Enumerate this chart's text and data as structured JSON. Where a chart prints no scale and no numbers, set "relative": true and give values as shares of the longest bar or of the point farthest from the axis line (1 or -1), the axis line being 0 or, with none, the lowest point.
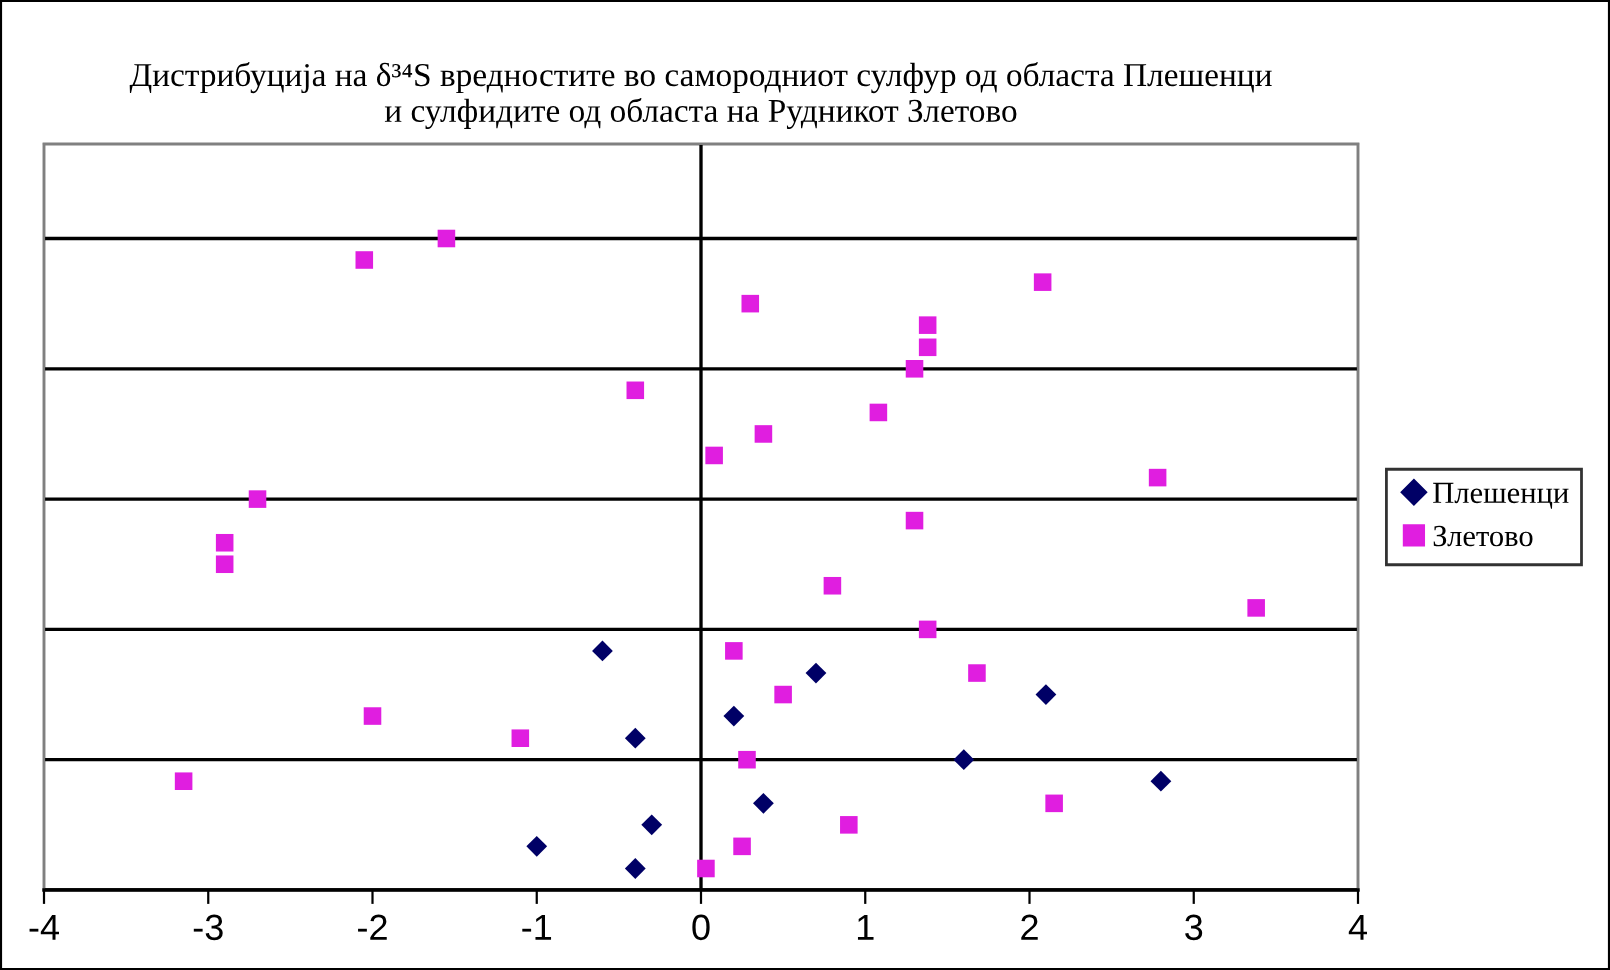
{
  "chart_data": {
    "type": "scatter",
    "title": "Дистрибуција на δ³⁴S вредностите во самородниот сулфур од областа Плешенци\nи сулфидите од областа на Рудникот Злетово",
    "relative": true,
    "grid": "y",
    "legend": "right",
    "ref_lines": [
      {
        "axis": "x",
        "value": 0,
        "color": "#000000"
      }
    ],
    "xlim": [
      -4,
      4
    ],
    "xticks": [
      -4,
      -3,
      -2,
      -1,
      0,
      1,
      2,
      3,
      4
    ],
    "series": [
      {
        "name": "Плешенци",
        "color": "#000066",
        "marker": "diamond",
        "x": [
          -0.6,
          0.7,
          0.2,
          -0.4,
          2.1,
          1.6,
          2.8,
          0.38,
          -0.3,
          -1.0,
          -0.4
        ],
        "values": [
          0.367,
          0.333,
          0.267,
          0.233,
          0.3,
          0.2,
          0.167,
          0.133,
          0.1,
          0.067,
          0.033
        ]
      },
      {
        "name": "Злетово",
        "color": "#e01ee0",
        "marker": "square",
        "x": [
          -2.05,
          -1.55,
          0.3,
          1.38,
          1.38,
          2.08,
          1.3,
          -0.4,
          1.08,
          0.38,
          0.08,
          -2.7,
          -2.9,
          -2.9,
          2.78,
          1.3,
          0.8,
          3.38,
          1.38,
          0.2,
          0.5,
          1.68,
          -2.0,
          -1.1,
          0.28,
          -3.15,
          2.15,
          0.9,
          0.25,
          0.03
        ],
        "values": [
          0.967,
          1.0,
          0.9,
          0.867,
          0.833,
          0.933,
          0.8,
          0.767,
          0.733,
          0.7,
          0.667,
          0.6,
          0.533,
          0.5,
          0.633,
          0.567,
          0.467,
          0.433,
          0.4,
          0.367,
          0.3,
          0.333,
          0.267,
          0.233,
          0.2,
          0.167,
          0.133,
          0.1,
          0.067,
          0.033
        ]
      }
    ]
  }
}
